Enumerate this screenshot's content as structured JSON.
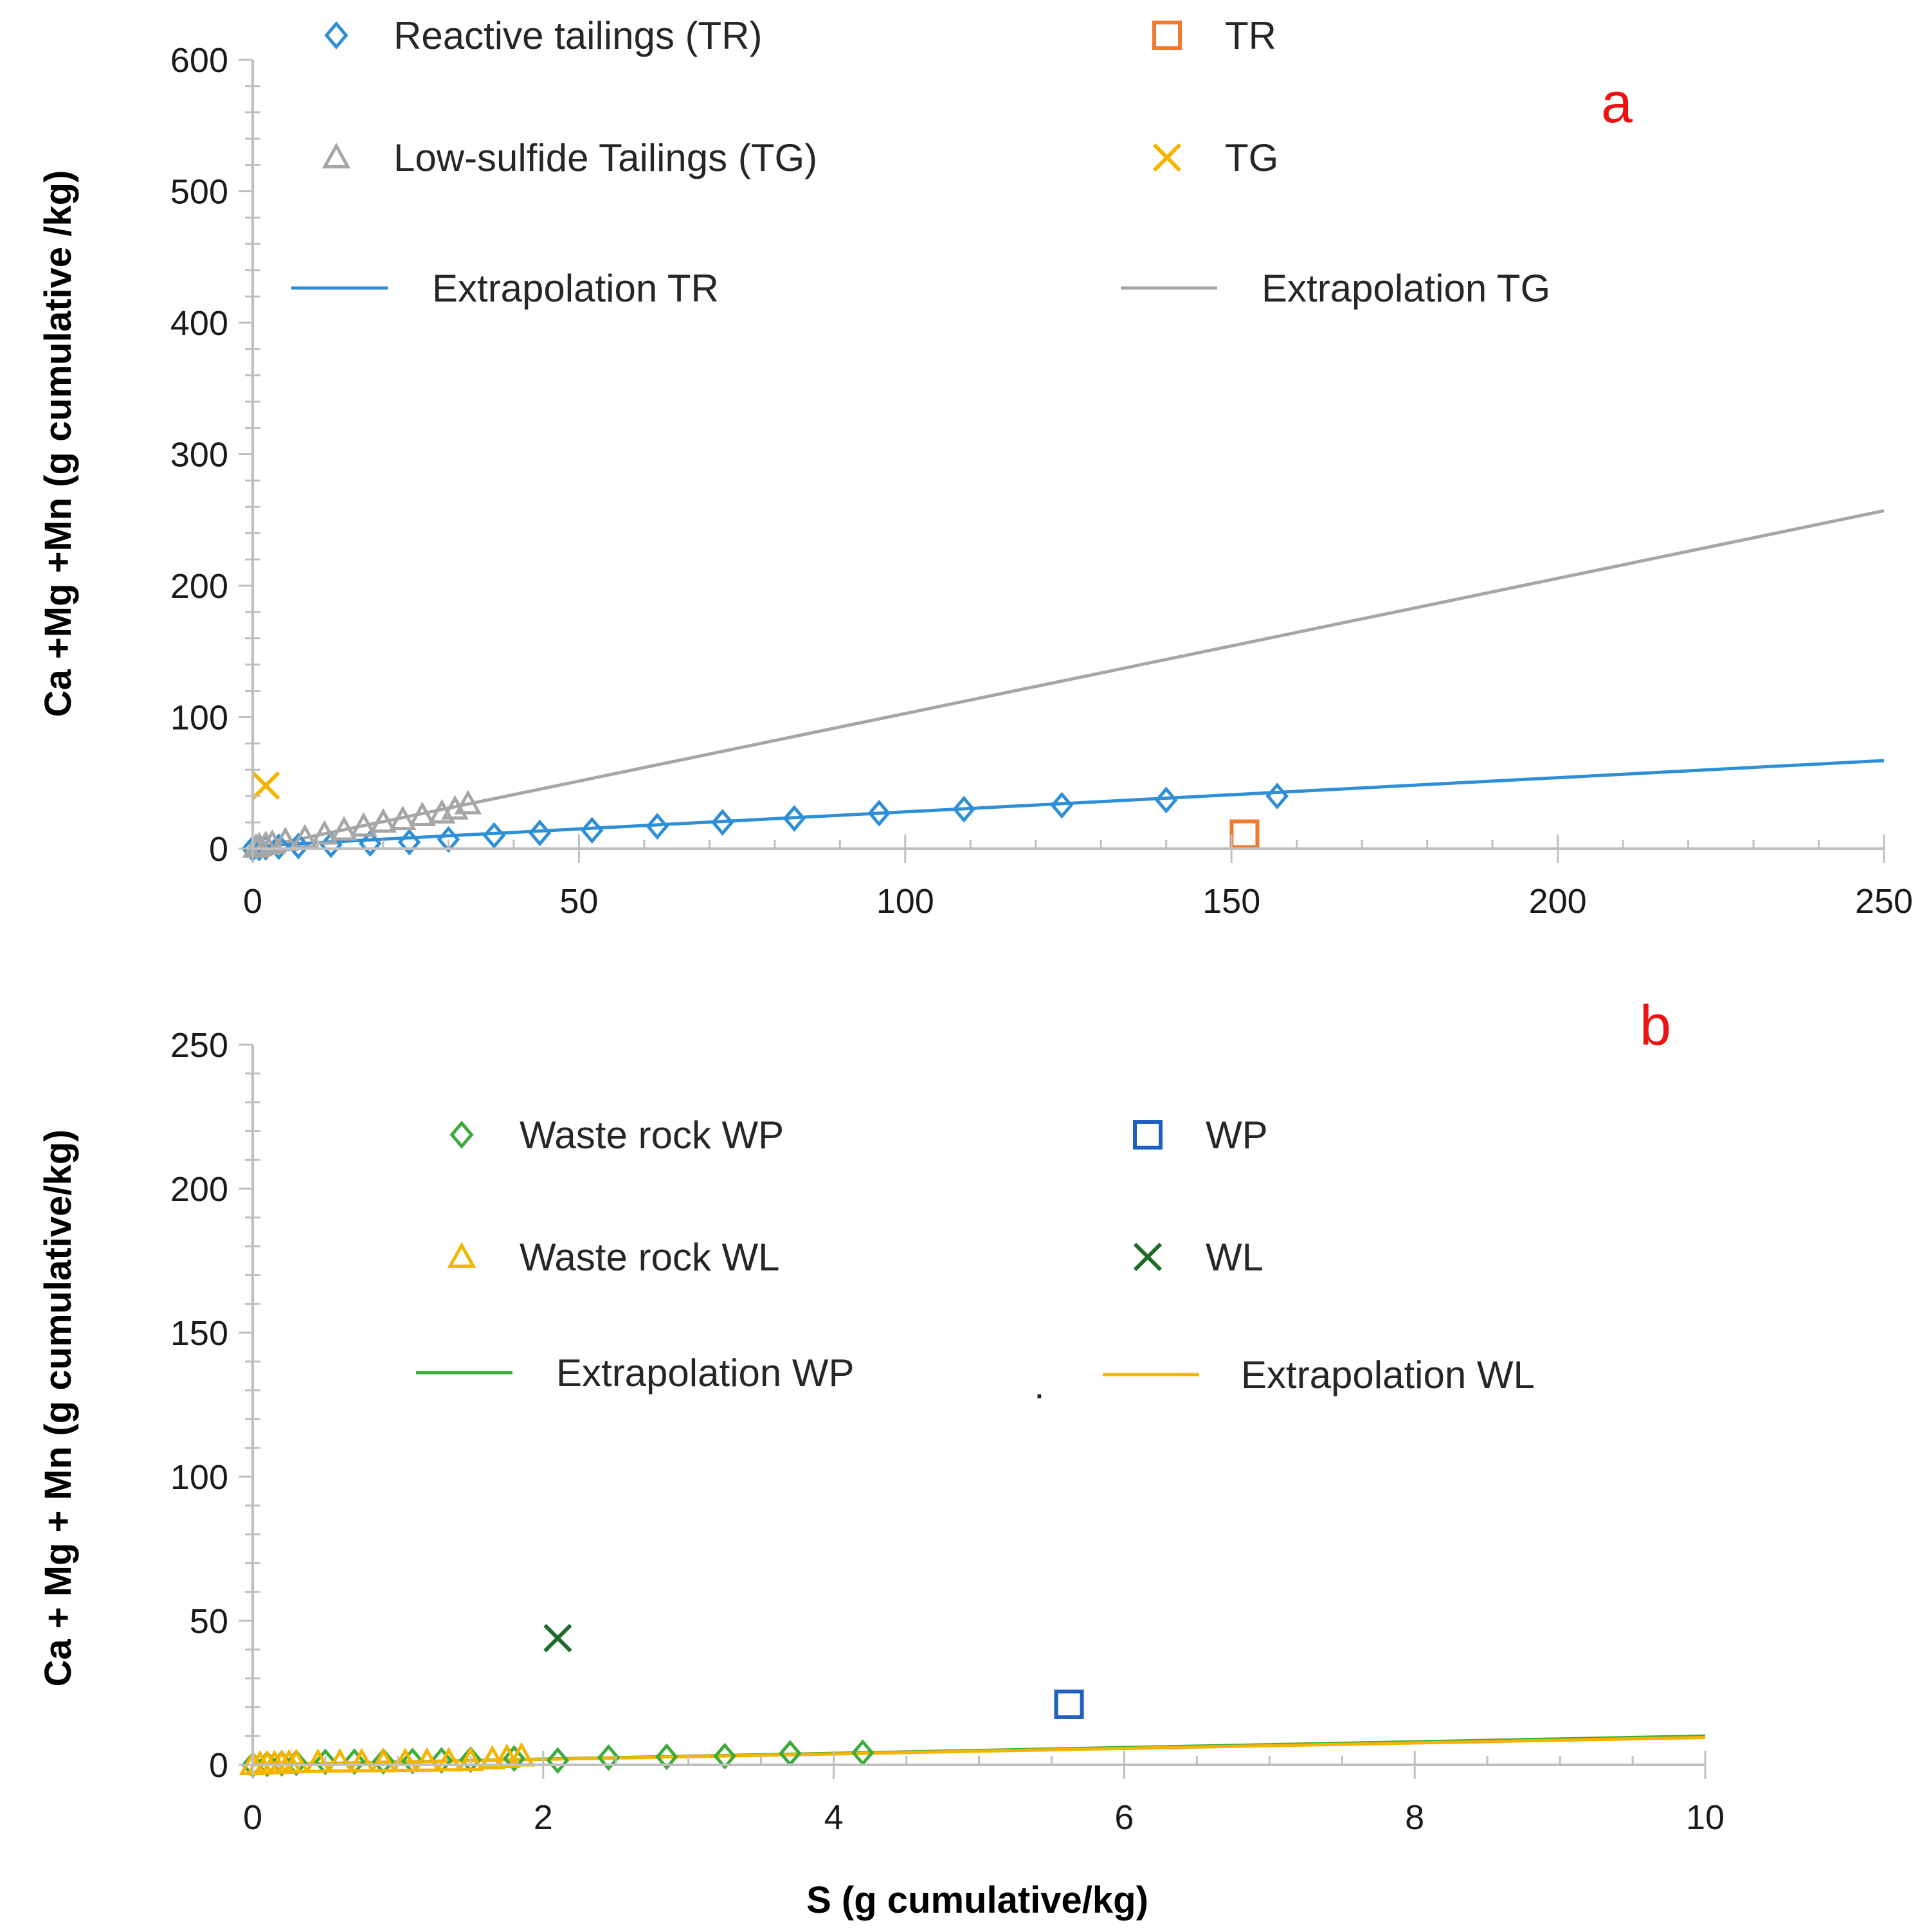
{
  "chart_data": [
    {
      "panel": "a",
      "type": "scatter",
      "panel_label": "a",
      "xlabel": "",
      "ylabel": "Ca +Mg +Mn (g cumulative /kg)",
      "xlim": [
        0,
        250
      ],
      "ylim": [
        0,
        600
      ],
      "xticks": [
        0,
        50,
        100,
        150,
        200,
        250
      ],
      "yticks": [
        0,
        100,
        200,
        300,
        400,
        500,
        600
      ],
      "legend": {
        "placement": "top"
      },
      "series": [
        {
          "name": "Reactive tailings (TR)",
          "marker": "diamond",
          "color": "#2e8fd6",
          "x": [
            0,
            1,
            2,
            4,
            7,
            12,
            18,
            24,
            30,
            37,
            44,
            52,
            62,
            72,
            83,
            96,
            109,
            124,
            140,
            157
          ],
          "y": [
            0,
            0.5,
            1,
            1.5,
            2,
            3,
            4,
            5,
            7,
            10,
            12,
            14,
            17,
            20,
            23,
            27,
            30,
            33,
            37,
            40
          ]
        },
        {
          "name": "Low-sulfide Tailings (TG)",
          "marker": "triangle",
          "color": "#a6a6a6",
          "x": [
            0.5,
            1,
            2,
            3,
            5,
            8,
            11,
            14,
            17,
            20,
            23,
            26,
            29,
            31,
            33
          ],
          "y": [
            1,
            2,
            3,
            4,
            6,
            8,
            11,
            14,
            17,
            20,
            22,
            25,
            27,
            30,
            34
          ]
        },
        {
          "name": "TR",
          "marker": "square",
          "color": "#f07a30",
          "x": [
            152
          ],
          "y": [
            11
          ]
        },
        {
          "name": "TG",
          "marker": "x",
          "color": "#f4b400",
          "x": [
            2
          ],
          "y": [
            48
          ]
        },
        {
          "name": "Extrapolation TR",
          "marker": "line",
          "color": "#2e8fd6",
          "x": [
            0,
            250
          ],
          "y": [
            2,
            67
          ]
        },
        {
          "name": "Extrapolation TG",
          "marker": "line",
          "color": "#a6a6a6",
          "x": [
            0,
            250
          ],
          "y": [
            0,
            257
          ]
        }
      ]
    },
    {
      "panel": "b",
      "type": "scatter",
      "panel_label": "b",
      "xlabel": "S (g cumulative/kg)",
      "ylabel": "Ca + Mg + Mn (g cumulative/kg)",
      "xlim": [
        0,
        10
      ],
      "ylim": [
        0,
        250
      ],
      "xticks": [
        0,
        2,
        4,
        6,
        8,
        10
      ],
      "yticks": [
        0,
        50,
        100,
        150,
        200,
        250
      ],
      "legend": {
        "placement": "top"
      },
      "series": [
        {
          "name": "Waste rock WP",
          "marker": "diamond",
          "color": "#3cab3c",
          "x": [
            0,
            0.1,
            0.2,
            0.3,
            0.5,
            0.7,
            0.9,
            1.1,
            1.3,
            1.5,
            1.8,
            2.1,
            2.45,
            2.85,
            3.25,
            3.7,
            4.2
          ],
          "y": [
            0,
            0.3,
            0.5,
            0.7,
            1,
            1.1,
            1.2,
            1.3,
            1.5,
            1.8,
            2.2,
            1.5,
            2.5,
            2.8,
            3,
            4,
            4.2
          ]
        },
        {
          "name": "Waste rock WL",
          "marker": "triangle",
          "color": "#f4b400",
          "x": [
            0,
            0.05,
            0.1,
            0.15,
            0.2,
            0.25,
            0.3,
            0.45,
            0.6,
            0.75,
            0.9,
            1.05,
            1.2,
            1.35,
            1.5,
            1.65,
            1.75,
            1.85
          ],
          "y": [
            0,
            0.2,
            0.3,
            0.4,
            0.5,
            0.6,
            0.7,
            0.8,
            0.9,
            1,
            1,
            1.1,
            1.2,
            1.3,
            1.4,
            2,
            2.5,
            3
          ]
        },
        {
          "name": "WP",
          "marker": "square",
          "color": "#1f5fbf",
          "x": [
            5.62
          ],
          "y": [
            21
          ]
        },
        {
          "name": "WL",
          "marker": "x",
          "color": "#1e6b2a",
          "x": [
            2.1
          ],
          "y": [
            44
          ]
        },
        {
          "name": "Extrapolation WP",
          "marker": "line",
          "color": "#3cab3c",
          "x": [
            0,
            10
          ],
          "y": [
            0,
            10
          ]
        },
        {
          "name": "Extrapolation WL",
          "marker": "line",
          "color": "#f4b400",
          "x": [
            0,
            10
          ],
          "y": [
            0,
            9.5
          ]
        }
      ]
    }
  ],
  "stray_dot": "."
}
